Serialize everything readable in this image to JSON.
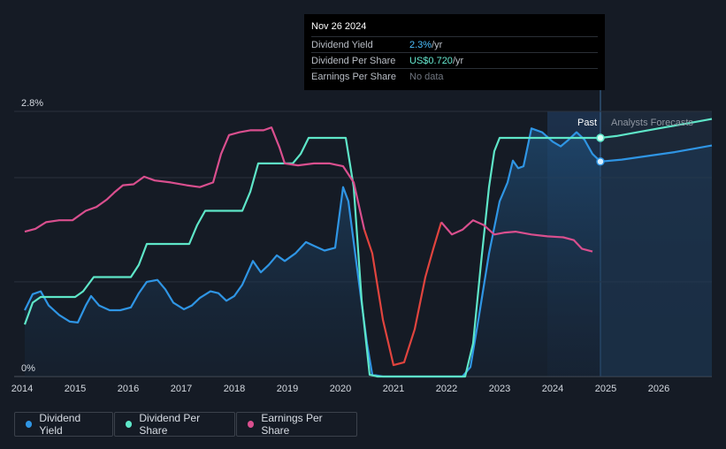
{
  "tooltip": {
    "date": "Nov 26 2024",
    "rows": [
      {
        "label": "Dividend Yield",
        "value": "2.3%",
        "unit": " /yr"
      },
      {
        "label": "Dividend Per Share",
        "value": "US$0.720",
        "unit": " /yr"
      },
      {
        "label": "Earnings Per Share",
        "value": "No data",
        "unit": ""
      }
    ]
  },
  "legend": [
    {
      "label": "Dividend Yield",
      "color": "#2f95e4"
    },
    {
      "label": "Dividend Per Share",
      "color": "#5ee6c8"
    },
    {
      "label": "Earnings Per Share",
      "color": "#d94f8e"
    }
  ],
  "labels": {
    "past": "Past",
    "forecast": "Analysts Forecasts"
  },
  "chart_data": {
    "type": "line",
    "x_range": [
      2013.85,
      2027.0
    ],
    "y_range": [
      0,
      2.8
    ],
    "y_ticks": [
      {
        "value": 2.8,
        "label": "2.8%"
      },
      {
        "value": 0,
        "label": "0%"
      }
    ],
    "x_ticks": [
      2014,
      2015,
      2016,
      2017,
      2018,
      2019,
      2020,
      2021,
      2022,
      2023,
      2024,
      2025,
      2026
    ],
    "past_start": 2023.9,
    "today": 2024.9,
    "series": [
      {
        "name": "Dividend Yield",
        "color": "#2f95e4",
        "area": true,
        "points": [
          [
            2014.05,
            0.7
          ],
          [
            2014.2,
            0.87
          ],
          [
            2014.35,
            0.9
          ],
          [
            2014.5,
            0.75
          ],
          [
            2014.7,
            0.65
          ],
          [
            2014.9,
            0.58
          ],
          [
            2015.05,
            0.57
          ],
          [
            2015.2,
            0.75
          ],
          [
            2015.3,
            0.85
          ],
          [
            2015.45,
            0.75
          ],
          [
            2015.65,
            0.7
          ],
          [
            2015.85,
            0.7
          ],
          [
            2016.05,
            0.73
          ],
          [
            2016.2,
            0.88
          ],
          [
            2016.35,
            1.0
          ],
          [
            2016.55,
            1.02
          ],
          [
            2016.7,
            0.92
          ],
          [
            2016.85,
            0.78
          ],
          [
            2017.05,
            0.71
          ],
          [
            2017.2,
            0.75
          ],
          [
            2017.35,
            0.83
          ],
          [
            2017.55,
            0.9
          ],
          [
            2017.7,
            0.88
          ],
          [
            2017.85,
            0.8
          ],
          [
            2018.0,
            0.85
          ],
          [
            2018.15,
            0.97
          ],
          [
            2018.35,
            1.22
          ],
          [
            2018.5,
            1.1
          ],
          [
            2018.65,
            1.18
          ],
          [
            2018.8,
            1.28
          ],
          [
            2018.95,
            1.22
          ],
          [
            2019.15,
            1.3
          ],
          [
            2019.35,
            1.42
          ],
          [
            2019.5,
            1.38
          ],
          [
            2019.7,
            1.33
          ],
          [
            2019.9,
            1.36
          ],
          [
            2020.05,
            2.0
          ],
          [
            2020.15,
            1.85
          ],
          [
            2020.3,
            1.2
          ],
          [
            2020.5,
            0.35
          ],
          [
            2020.6,
            0.02
          ],
          [
            2020.8,
            0.0
          ],
          [
            2022.3,
            0.0
          ],
          [
            2022.45,
            0.1
          ],
          [
            2022.6,
            0.6
          ],
          [
            2022.8,
            1.3
          ],
          [
            2023.0,
            1.85
          ],
          [
            2023.15,
            2.05
          ],
          [
            2023.25,
            2.28
          ],
          [
            2023.35,
            2.2
          ],
          [
            2023.45,
            2.22
          ],
          [
            2023.6,
            2.62
          ],
          [
            2023.8,
            2.58
          ],
          [
            2024.0,
            2.48
          ],
          [
            2024.15,
            2.43
          ],
          [
            2024.3,
            2.5
          ],
          [
            2024.45,
            2.58
          ],
          [
            2024.6,
            2.5
          ],
          [
            2024.75,
            2.35
          ],
          [
            2024.9,
            2.27
          ]
        ]
      },
      {
        "name": "Dividend Per Share",
        "color": "#5ee6c8",
        "points": [
          [
            2014.05,
            0.55
          ],
          [
            2014.2,
            0.78
          ],
          [
            2014.35,
            0.84
          ],
          [
            2015.0,
            0.84
          ],
          [
            2015.15,
            0.9
          ],
          [
            2015.35,
            1.05
          ],
          [
            2016.05,
            1.05
          ],
          [
            2016.2,
            1.18
          ],
          [
            2016.35,
            1.4
          ],
          [
            2017.15,
            1.4
          ],
          [
            2017.3,
            1.6
          ],
          [
            2017.45,
            1.75
          ],
          [
            2018.15,
            1.75
          ],
          [
            2018.3,
            1.95
          ],
          [
            2018.45,
            2.25
          ],
          [
            2019.1,
            2.25
          ],
          [
            2019.25,
            2.35
          ],
          [
            2019.4,
            2.52
          ],
          [
            2020.1,
            2.52
          ],
          [
            2020.25,
            2.0
          ],
          [
            2020.4,
            0.8
          ],
          [
            2020.55,
            0.02
          ],
          [
            2020.7,
            0.0
          ],
          [
            2022.35,
            0.0
          ],
          [
            2022.5,
            0.35
          ],
          [
            2022.65,
            1.2
          ],
          [
            2022.8,
            2.0
          ],
          [
            2022.9,
            2.38
          ],
          [
            2023.0,
            2.52
          ],
          [
            2024.9,
            2.52
          ]
        ]
      },
      {
        "name": "Earnings Per Share",
        "color": "#d94f8e",
        "points": [
          [
            2014.05,
            1.53
          ],
          [
            2014.25,
            1.56
          ],
          [
            2014.45,
            1.63
          ],
          [
            2014.7,
            1.65
          ],
          [
            2014.95,
            1.65
          ],
          [
            2015.2,
            1.75
          ],
          [
            2015.4,
            1.79
          ],
          [
            2015.6,
            1.87
          ],
          [
            2015.75,
            1.95
          ],
          [
            2015.9,
            2.02
          ],
          [
            2016.1,
            2.03
          ],
          [
            2016.3,
            2.11
          ],
          [
            2016.5,
            2.07
          ],
          [
            2016.8,
            2.05
          ],
          [
            2017.1,
            2.02
          ],
          [
            2017.35,
            2.0
          ],
          [
            2017.6,
            2.05
          ],
          [
            2017.75,
            2.35
          ],
          [
            2017.9,
            2.55
          ],
          [
            2018.1,
            2.58
          ],
          [
            2018.3,
            2.6
          ],
          [
            2018.55,
            2.6
          ],
          [
            2018.7,
            2.63
          ],
          [
            2018.85,
            2.42
          ],
          [
            2018.95,
            2.25
          ],
          [
            2019.2,
            2.23
          ],
          [
            2019.5,
            2.25
          ],
          [
            2019.8,
            2.25
          ],
          [
            2020.05,
            2.22
          ],
          [
            2020.25,
            2.05
          ],
          [
            2020.45,
            1.55
          ],
          [
            2020.6,
            1.3
          ],
          [
            2020.8,
            0.6
          ],
          [
            2021.0,
            0.12
          ],
          [
            2021.2,
            0.15
          ],
          [
            2021.4,
            0.5
          ],
          [
            2021.6,
            1.05
          ],
          [
            2021.75,
            1.35
          ],
          [
            2021.9,
            1.63
          ],
          [
            2022.1,
            1.5
          ],
          [
            2022.3,
            1.55
          ],
          [
            2022.5,
            1.65
          ],
          [
            2022.7,
            1.6
          ],
          [
            2022.9,
            1.5
          ],
          [
            2023.1,
            1.52
          ],
          [
            2023.3,
            1.53
          ],
          [
            2023.6,
            1.5
          ],
          [
            2023.9,
            1.48
          ],
          [
            2024.2,
            1.47
          ],
          [
            2024.4,
            1.44
          ],
          [
            2024.55,
            1.35
          ],
          [
            2024.75,
            1.32
          ]
        ]
      },
      {
        "name": "Dividend Per Share Forecast",
        "color": "#5ee6c8",
        "points": [
          [
            2024.9,
            2.52
          ],
          [
            2025.2,
            2.54
          ],
          [
            2025.6,
            2.58
          ],
          [
            2026.1,
            2.63
          ],
          [
            2026.6,
            2.68
          ],
          [
            2027.0,
            2.72
          ]
        ]
      },
      {
        "name": "Dividend Yield Forecast",
        "color": "#2f95e4",
        "points": [
          [
            2024.9,
            2.27
          ],
          [
            2025.3,
            2.29
          ],
          [
            2025.8,
            2.33
          ],
          [
            2026.3,
            2.37
          ],
          [
            2026.7,
            2.41
          ],
          [
            2027.0,
            2.44
          ]
        ]
      }
    ]
  }
}
